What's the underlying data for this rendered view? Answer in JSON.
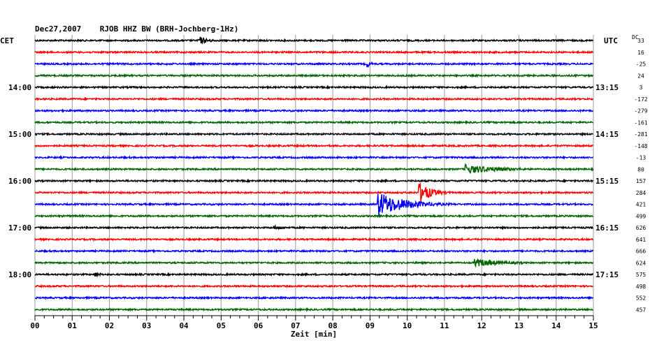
{
  "chart_data": {
    "type": "line",
    "title": "Dec27,2007    RJOB HHZ BW (BRH-Jochberg-1Hz)",
    "left_axis_label": "CET",
    "right_axis_label": "UTC",
    "dc_label": "DC",
    "xlabel": "Zeit [min]",
    "xlim": [
      0,
      15
    ],
    "x_ticks": [
      "00",
      "01",
      "02",
      "03",
      "04",
      "05",
      "06",
      "07",
      "08",
      "09",
      "10",
      "11",
      "12",
      "13",
      "14",
      "15"
    ],
    "left_hour_labels": [
      {
        "row": 4,
        "label": "14:00"
      },
      {
        "row": 8,
        "label": "15:00"
      },
      {
        "row": 12,
        "label": "16:00"
      },
      {
        "row": 16,
        "label": "17:00"
      },
      {
        "row": 20,
        "label": "18:00"
      }
    ],
    "right_hour_labels": [
      {
        "row": 4,
        "label": "13:15"
      },
      {
        "row": 8,
        "label": "14:15"
      },
      {
        "row": 12,
        "label": "15:15"
      },
      {
        "row": 16,
        "label": "16:15"
      },
      {
        "row": 20,
        "label": "17:15"
      }
    ],
    "trace_colors": [
      "#000000",
      "#ff0000",
      "#0000ff",
      "#006400"
    ],
    "dc_offsets": [
      "33",
      "16",
      "-25",
      "24",
      "3",
      "-172",
      "-279",
      "-161",
      "-281",
      "-148",
      "-13",
      "80",
      "157",
      "284",
      "421",
      "499",
      "626",
      "641",
      "666",
      "624",
      "575",
      "498",
      "552",
      "457"
    ],
    "events": [
      {
        "row": 0,
        "start_min": 4.4,
        "amplitude": 6,
        "duration_min": 0.9
      },
      {
        "row": 2,
        "start_min": 7.6,
        "amplitude": 3,
        "duration_min": 0.3
      },
      {
        "row": 2,
        "start_min": 8.9,
        "amplitude": 6,
        "duration_min": 0.4
      },
      {
        "row": 11,
        "start_min": 11.55,
        "amplitude": 7,
        "duration_min": 3.0
      },
      {
        "row": 13,
        "start_min": 10.3,
        "amplitude": 16,
        "duration_min": 1.0
      },
      {
        "row": 14,
        "start_min": 9.2,
        "amplitude": 18,
        "duration_min": 2.3
      },
      {
        "row": 16,
        "start_min": 6.4,
        "amplitude": 3,
        "duration_min": 1.2
      },
      {
        "row": 19,
        "start_min": 11.8,
        "amplitude": 6,
        "duration_min": 2.6
      },
      {
        "row": 20,
        "start_min": 1.6,
        "amplitude": 4,
        "duration_min": 0.6
      }
    ]
  }
}
